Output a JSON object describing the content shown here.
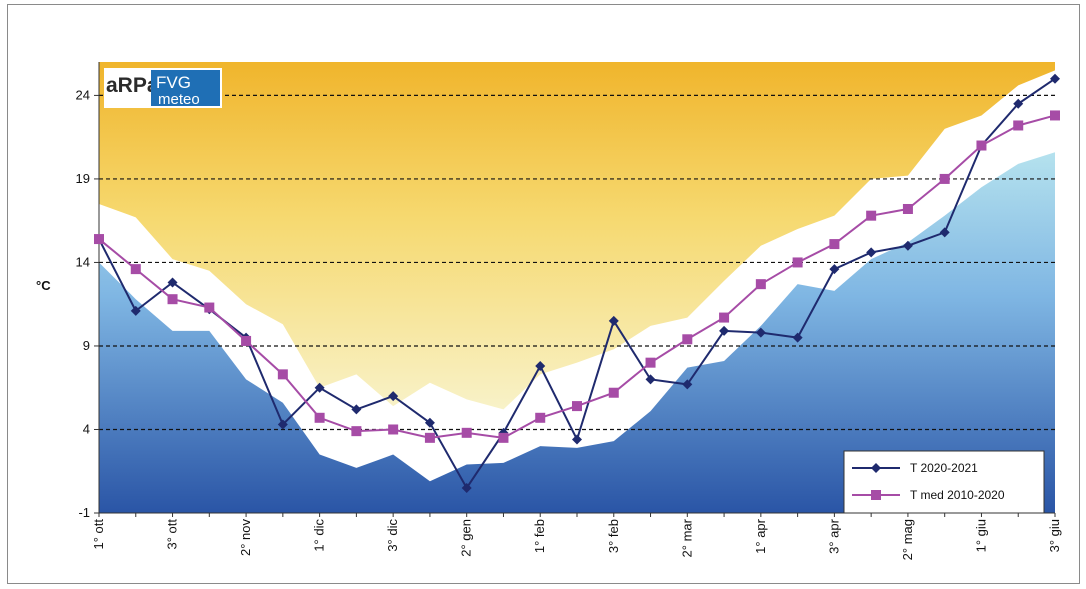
{
  "chart_data": {
    "type": "line",
    "ylabel": "°C",
    "ylim": [
      -1,
      26
    ],
    "yticks": [
      -1,
      4,
      9,
      14,
      19,
      24
    ],
    "dashed_gridlines": [
      4,
      9,
      14,
      19,
      24
    ],
    "x_tick_labels": [
      "1° ott",
      "3° ott",
      "2° nov",
      "1° dic",
      "3° dic",
      "2° gen",
      "1° feb",
      "3° feb",
      "2° mar",
      "1° apr",
      "3° apr",
      "2° mag",
      "1° giu",
      "3° giu"
    ],
    "legend_position": "bottom-right",
    "series": [
      {
        "name": "T 2020-2021",
        "color": "#1f2a6e",
        "marker": "diamond",
        "values": [
          15.4,
          11.1,
          12.8,
          11.2,
          9.5,
          4.3,
          6.5,
          5.2,
          6.0,
          4.4,
          0.5,
          3.8,
          7.8,
          3.4,
          10.5,
          7.0,
          6.7,
          9.9,
          9.8,
          9.5,
          13.6,
          14.6,
          15.0,
          15.8,
          21.0,
          23.5,
          25.0
        ]
      },
      {
        "name": "T med 2010-2020",
        "color": "#a64ca6",
        "marker": "square",
        "values": [
          15.4,
          13.6,
          11.8,
          11.3,
          9.3,
          7.3,
          4.7,
          3.9,
          4.0,
          3.5,
          3.8,
          3.5,
          4.7,
          5.4,
          6.2,
          8.0,
          9.4,
          10.7,
          12.7,
          14.0,
          15.1,
          16.8,
          17.2,
          19.0,
          21.0,
          22.2,
          22.8
        ]
      }
    ],
    "bands": {
      "upper_edge": [
        17.5,
        16.7,
        14.2,
        13.5,
        11.5,
        10.3,
        6.5,
        7.3,
        5.4,
        6.8,
        5.8,
        5.2,
        7.3,
        8.0,
        8.8,
        10.2,
        10.7,
        12.9,
        15.0,
        16.0,
        16.8,
        19.0,
        19.2,
        22.0,
        22.8,
        24.6,
        25.5
      ],
      "lower_edge": [
        14.0,
        11.8,
        9.9,
        9.9,
        7.0,
        5.6,
        2.5,
        1.7,
        2.5,
        0.9,
        1.9,
        2.0,
        3.0,
        2.9,
        3.3,
        5.1,
        7.7,
        8.1,
        10.2,
        12.7,
        12.3,
        14.2,
        15.2,
        16.8,
        18.5,
        19.9,
        20.6
      ]
    }
  },
  "logo": {
    "part1": "aRPa",
    "part2": "FVG",
    "part3": "meteo",
    "colors": {
      "dark": "#2b2b2b",
      "blue": "#1f6fb5"
    }
  },
  "colors": {
    "warm_top": "#f0b52c",
    "warm_bottom": "#f8f2c8",
    "cool_top": "#b5e2ee",
    "cool_bottom": "#2a55a6",
    "gridline": "#111111"
  }
}
